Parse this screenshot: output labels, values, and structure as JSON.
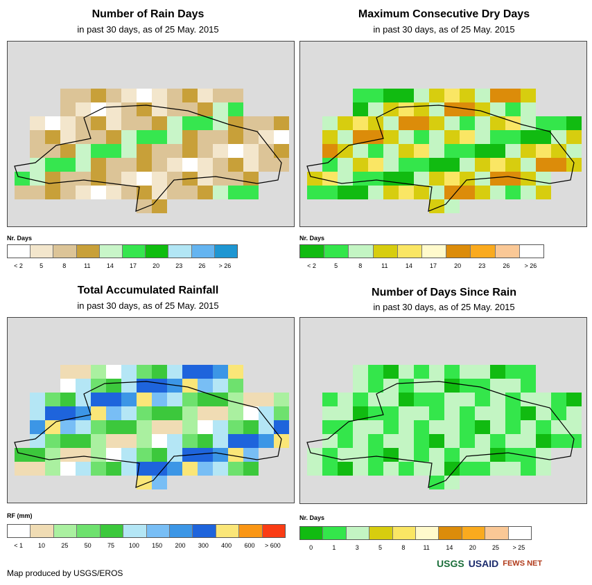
{
  "panels": [
    {
      "title": "Number of Rain Days",
      "subtitle": "in past 30 days, as of 25 May. 2015",
      "legend_title": "Nr. Days",
      "legend_colors": [
        "#ffffff",
        "#f3e6cc",
        "#dcc497",
        "#c8a039",
        "#c8f5c8",
        "#36e64f",
        "#0fbd0f",
        "#b2e6f5",
        "#64b4f0",
        "#1e96d2"
      ],
      "legend_labels": [
        "< 2",
        "5",
        "8",
        "11",
        "14",
        "17",
        "20",
        "23",
        "26",
        "> 26"
      ]
    },
    {
      "title": "Maximum Consecutive Dry Days",
      "subtitle": "in past 30 days, as of 25 May. 2015",
      "legend_title": "Nr. Days",
      "legend_colors": [
        "#11bb11",
        "#34e64b",
        "#c3f5c3",
        "#d7cd0f",
        "#fae664",
        "#fffacc",
        "#dc8c0a",
        "#faaa1e",
        "#fac896",
        "#ffffff"
      ],
      "legend_labels": [
        "< 2",
        "5",
        "8",
        "11",
        "14",
        "17",
        "20",
        "23",
        "26",
        "> 26"
      ]
    },
    {
      "title": "Total Accumulated Rainfall",
      "subtitle": "in past 30 days, as of 25 May. 2015",
      "legend_title": "RF (mm)",
      "legend_colors": [
        "#ffffff",
        "#f0dcb4",
        "#aaf0a0",
        "#6ee16e",
        "#3cc83c",
        "#b4e6f5",
        "#78bef5",
        "#3c96e6",
        "#1e64dc",
        "#fae678",
        "#fa9614",
        "#fa3c14"
      ],
      "legend_labels": [
        "< 1",
        "10",
        "25",
        "50",
        "75",
        "100",
        "150",
        "200",
        "300",
        "400",
        "600",
        "> 600"
      ]
    },
    {
      "title": "Number of Days Since Rain",
      "subtitle": "in past 30 days, as of 25 May. 2015",
      "legend_title": "Nr. Days",
      "legend_colors": [
        "#11bb11",
        "#34e64b",
        "#c3f5c3",
        "#d7cd0f",
        "#fae664",
        "#fffacc",
        "#dc8c0a",
        "#faaa1e",
        "#fac896",
        "#ffffff"
      ],
      "legend_labels": [
        "0",
        "1",
        "3",
        "5",
        "8",
        "11",
        "14",
        "20",
        "25",
        "> 25"
      ]
    }
  ],
  "footer": "Map produced by USGS/EROS",
  "logos": [
    "USGS",
    "USAID",
    "FEWS NET"
  ],
  "colors": {
    "map_bg": "#dcdcdc"
  }
}
